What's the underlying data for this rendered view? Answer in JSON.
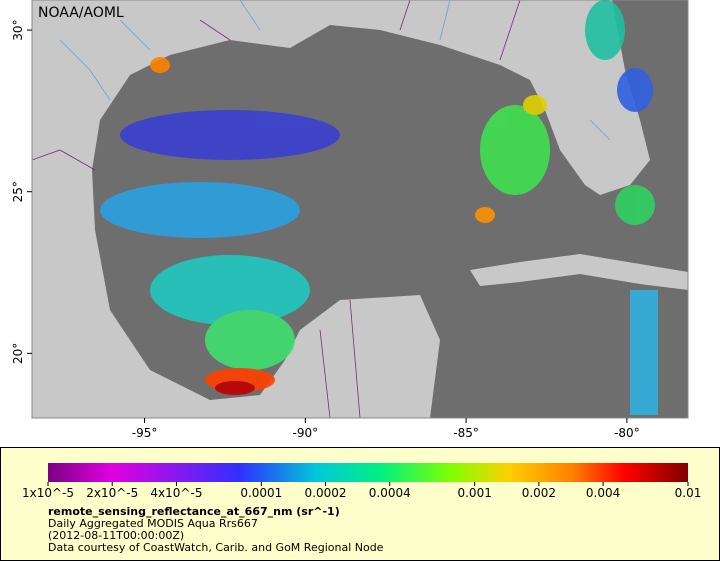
{
  "header": {
    "credit": "NOAA/AOML"
  },
  "map": {
    "xlim": [
      -98.5,
      -78.1
    ],
    "ylim": [
      18.0,
      30.93
    ],
    "xticks": [
      {
        "value": -95,
        "label": "-95°"
      },
      {
        "value": -90,
        "label": "-90°"
      },
      {
        "value": -85,
        "label": "-85°"
      },
      {
        "value": -80,
        "label": "-80°"
      }
    ],
    "yticks": [
      {
        "value": 20,
        "label": "20°"
      },
      {
        "value": 25,
        "label": "25°"
      },
      {
        "value": 30,
        "label": "30°"
      }
    ]
  },
  "legend": {
    "colorbar": {
      "scale": "log",
      "range": [
        1e-05,
        0.01
      ],
      "ticks": [
        {
          "value": 1e-05,
          "label": "1x10^-5"
        },
        {
          "value": 2e-05,
          "label": "2x10^-5"
        },
        {
          "value": 4e-05,
          "label": "4x10^-5"
        },
        0.0001,
        0.0002,
        0.0004,
        0.001,
        0.002,
        0.004,
        0.01
      ]
    },
    "variable": "remote_sensing_reflectance_at_667_nm (sr^-1)",
    "lines": [
      "Daily Aggregated MODIS Aqua Rrs667",
      "(2012-08-11T00:00:00Z)",
      "Data courtesy of CoastWatch, Carib. and GoM Regional Node"
    ]
  }
}
